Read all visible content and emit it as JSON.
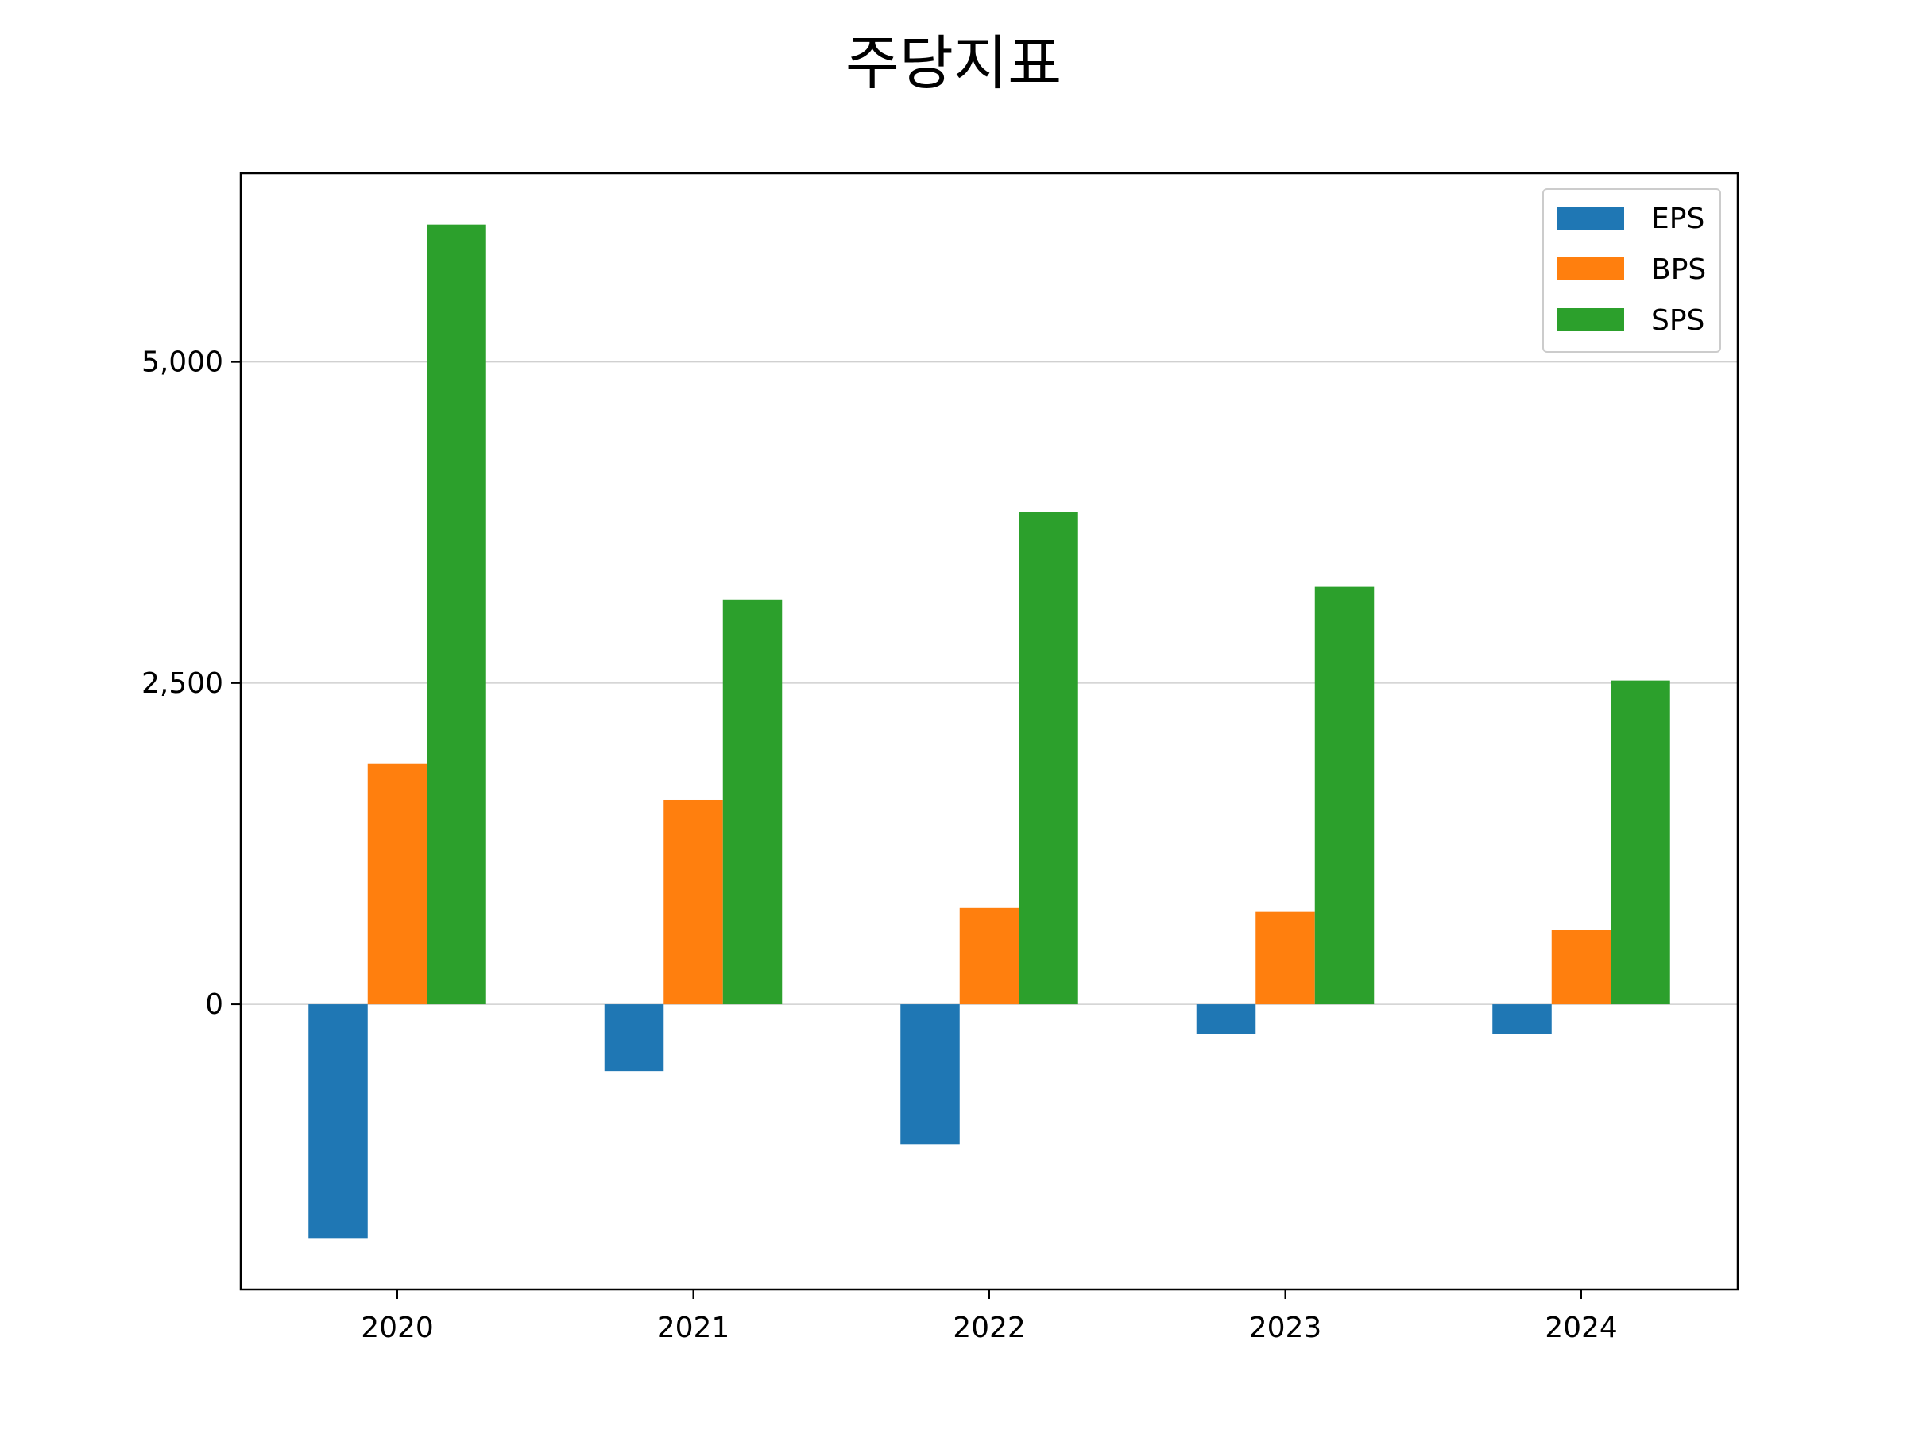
{
  "chart_data": {
    "type": "bar",
    "title": "주당지표",
    "xlabel": "",
    "ylabel": "",
    "categories": [
      "2020",
      "2021",
      "2022",
      "2023",
      "2024"
    ],
    "series": [
      {
        "name": "EPS",
        "color": "#1f77b4",
        "values": [
          -1820,
          -520,
          -1090,
          -230,
          -230
        ]
      },
      {
        "name": "BPS",
        "color": "#ff7f0e",
        "values": [
          1870,
          1590,
          750,
          720,
          580
        ]
      },
      {
        "name": "SPS",
        "color": "#2ca02c",
        "values": [
          6070,
          3150,
          3830,
          3250,
          2520
        ]
      }
    ],
    "ylim": [
      -2220,
      6470
    ],
    "yticks": [
      0,
      2500,
      5000
    ],
    "ytick_labels": [
      "0",
      "2,500",
      "5,000"
    ],
    "grid": "horizontal",
    "legend_position": "top-right"
  }
}
